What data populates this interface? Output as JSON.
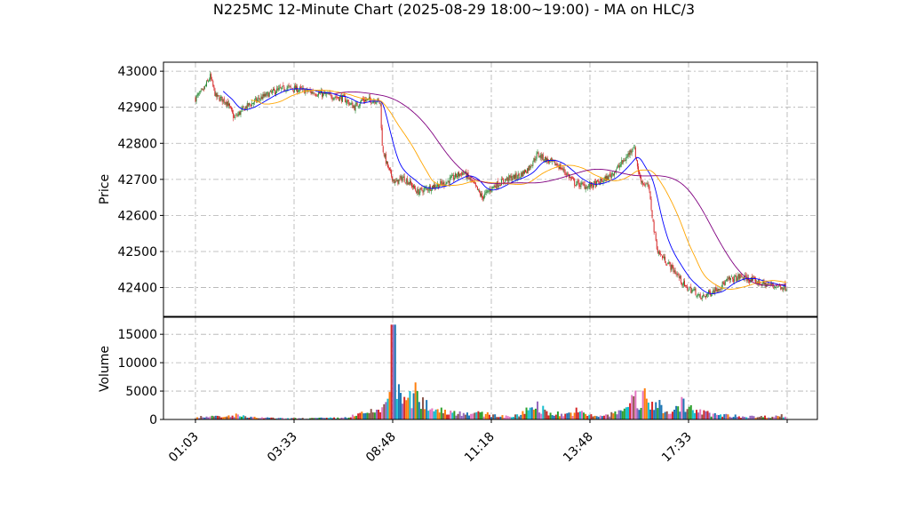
{
  "title": "N225MC 12-Minute Chart (2025-08-29 18:00~19:00) - MA on HLC/3",
  "colors": {
    "up": "#2e8b3a",
    "down": "#d62728",
    "ma_fast": "#0000ff",
    "ma_mid": "#ffa500",
    "ma_slow": "#800080",
    "volume": [
      "#1f77b4",
      "#ff7f0e",
      "#2ca02c",
      "#d62728",
      "#9467bd",
      "#8c564b",
      "#e377c2",
      "#17becf"
    ],
    "grid": "#b0b0b0"
  },
  "chart_data": [
    {
      "type": "candlestick",
      "ylabel": "Price",
      "ylim": [
        42320,
        43025
      ],
      "yticks": [
        42400,
        42500,
        42600,
        42700,
        42800,
        42900,
        43000
      ],
      "grid": true,
      "price_path": [
        [
          0,
          42925
        ],
        [
          8,
          42945
        ],
        [
          16,
          42985
        ],
        [
          22,
          42930
        ],
        [
          34,
          42915
        ],
        [
          42,
          42870
        ],
        [
          54,
          42900
        ],
        [
          70,
          42925
        ],
        [
          86,
          42945
        ],
        [
          100,
          42955
        ],
        [
          120,
          42945
        ],
        [
          140,
          42935
        ],
        [
          160,
          42925
        ],
        [
          172,
          42900
        ],
        [
          180,
          42920
        ],
        [
          196,
          42920
        ],
        [
          200,
          42910
        ],
        [
          202,
          42790
        ],
        [
          206,
          42750
        ],
        [
          210,
          42720
        ],
        [
          216,
          42690
        ],
        [
          224,
          42705
        ],
        [
          232,
          42690
        ],
        [
          240,
          42665
        ],
        [
          256,
          42680
        ],
        [
          270,
          42690
        ],
        [
          282,
          42710
        ],
        [
          290,
          42720
        ],
        [
          300,
          42690
        ],
        [
          310,
          42650
        ],
        [
          322,
          42680
        ],
        [
          336,
          42700
        ],
        [
          350,
          42710
        ],
        [
          360,
          42730
        ],
        [
          370,
          42770
        ],
        [
          382,
          42750
        ],
        [
          392,
          42740
        ],
        [
          400,
          42720
        ],
        [
          410,
          42690
        ],
        [
          424,
          42680
        ],
        [
          436,
          42690
        ],
        [
          446,
          42705
        ],
        [
          456,
          42730
        ],
        [
          466,
          42760
        ],
        [
          474,
          42795
        ],
        [
          480,
          42710
        ],
        [
          484,
          42690
        ],
        [
          490,
          42680
        ],
        [
          496,
          42560
        ],
        [
          500,
          42500
        ],
        [
          510,
          42470
        ],
        [
          520,
          42440
        ],
        [
          530,
          42400
        ],
        [
          540,
          42390
        ],
        [
          546,
          42370
        ],
        [
          556,
          42385
        ],
        [
          566,
          42400
        ],
        [
          576,
          42420
        ],
        [
          590,
          42430
        ],
        [
          602,
          42420
        ],
        [
          614,
          42410
        ],
        [
          628,
          42405
        ],
        [
          640,
          42400
        ]
      ],
      "n_candles": 640
    },
    {
      "type": "bar",
      "ylabel": "Volume",
      "ylim": [
        0,
        18000
      ],
      "yticks": [
        0,
        5000,
        10000,
        15000
      ],
      "grid": true,
      "volume_spikes": [
        [
          0,
          300
        ],
        [
          8,
          700
        ],
        [
          14,
          400
        ],
        [
          22,
          600
        ],
        [
          30,
          400
        ],
        [
          44,
          900
        ],
        [
          56,
          400
        ],
        [
          100,
          200
        ],
        [
          160,
          300
        ],
        [
          200,
          1800
        ],
        [
          206,
          3500
        ],
        [
          210,
          6800
        ],
        [
          214,
          16700
        ],
        [
          218,
          5200
        ],
        [
          222,
          4300
        ],
        [
          228,
          3300
        ],
        [
          238,
          4900
        ],
        [
          244,
          3400
        ],
        [
          254,
          2500
        ],
        [
          266,
          1800
        ],
        [
          278,
          1400
        ],
        [
          292,
          1300
        ],
        [
          306,
          1100
        ],
        [
          320,
          900
        ],
        [
          334,
          600
        ],
        [
          350,
          700
        ],
        [
          360,
          2200
        ],
        [
          370,
          2700
        ],
        [
          380,
          1300
        ],
        [
          392,
          1100
        ],
        [
          400,
          900
        ],
        [
          412,
          1600
        ],
        [
          424,
          800
        ],
        [
          436,
          700
        ],
        [
          446,
          800
        ],
        [
          456,
          1300
        ],
        [
          466,
          2200
        ],
        [
          474,
          5900
        ],
        [
          480,
          1500
        ],
        [
          486,
          4900
        ],
        [
          492,
          2600
        ],
        [
          498,
          3400
        ],
        [
          508,
          1800
        ],
        [
          518,
          1500
        ],
        [
          526,
          3100
        ],
        [
          534,
          2200
        ],
        [
          544,
          1500
        ],
        [
          556,
          1100
        ],
        [
          570,
          800
        ],
        [
          590,
          600
        ],
        [
          610,
          500
        ],
        [
          626,
          600
        ],
        [
          640,
          800
        ]
      ],
      "xticks": [
        "01:03",
        "03:33",
        "08:48",
        "11:18",
        "13:48",
        "17:33"
      ]
    }
  ]
}
